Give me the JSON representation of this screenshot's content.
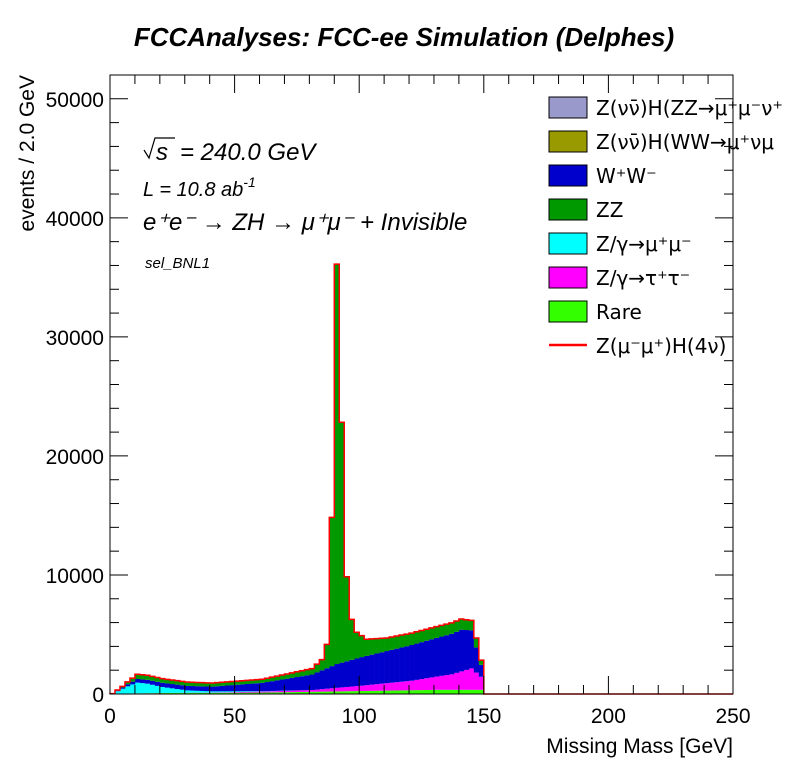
{
  "chart_data": {
    "type": "stacked-histogram",
    "title": "FCCAnalyses: FCC-ee Simulation (Delphes)",
    "xlabel": "Missing Mass [GeV]",
    "ylabel": "events / 2.0 GeV",
    "xlim": [
      0,
      250
    ],
    "ylim": [
      0,
      52000
    ],
    "bin_width": 2,
    "x_ticks": [
      0,
      50,
      100,
      150,
      200,
      250
    ],
    "y_ticks": [
      0,
      10000,
      20000,
      30000,
      40000,
      50000
    ],
    "x_tick_labels": [
      "0",
      "50",
      "100",
      "150",
      "200",
      "250"
    ],
    "y_tick_labels": [
      "0",
      "10000",
      "20000",
      "30000",
      "40000",
      "50000"
    ],
    "annotations": {
      "sqrt_s": "= 240.0 GeV",
      "lumi": "L = 10.8 ab",
      "lumi_exp": "-1",
      "process": "e⁺e⁻ → ZH → μ⁺μ⁻ + Invisible",
      "selection": "sel_BNL1"
    },
    "legend_position": "top-right",
    "legend": [
      {
        "label": "Z(νν̄)H(ZZ→μ⁺μ⁻ν⁺",
        "color": "#9999cc",
        "style": "fill"
      },
      {
        "label": "Z(νν̄)H(WW→μ⁺νμ",
        "color": "#999900",
        "style": "fill"
      },
      {
        "label": "W⁺W⁻",
        "color": "#0000cc",
        "style": "fill"
      },
      {
        "label": "ZZ",
        "color": "#009900",
        "style": "fill"
      },
      {
        "label": "Z/γ→μ⁺μ⁻",
        "color": "#00ffff",
        "style": "fill"
      },
      {
        "label": "Z/γ→τ⁺τ⁻",
        "color": "#ff00ff",
        "style": "fill"
      },
      {
        "label": "Rare",
        "color": "#33ff00",
        "style": "fill"
      },
      {
        "label": "Z(μ⁻μ⁺)H(4ν)",
        "color": "#ff0000",
        "style": "line"
      }
    ],
    "stack_order": [
      "Rare",
      "Z/γ→τ⁺τ⁻",
      "Z/γ→μ⁺μ⁻",
      "W⁺W⁻",
      "ZZ"
    ],
    "approx_bin_values": {
      "Rare": [
        [
          0,
          30
        ],
        [
          20,
          80
        ],
        [
          60,
          120
        ],
        [
          100,
          250
        ],
        [
          130,
          350
        ],
        [
          148,
          350
        ],
        [
          150,
          0
        ],
        [
          250,
          0
        ]
      ],
      "Z/γ→τ⁺τ⁻": [
        [
          0,
          0
        ],
        [
          40,
          20
        ],
        [
          80,
          150
        ],
        [
          100,
          450
        ],
        [
          120,
          800
        ],
        [
          136,
          1300
        ],
        [
          144,
          1800
        ],
        [
          148,
          1100
        ],
        [
          150,
          0
        ],
        [
          250,
          0
        ]
      ],
      "Z/γ→μ⁺μ⁻": [
        [
          0,
          0
        ],
        [
          2,
          200
        ],
        [
          6,
          600
        ],
        [
          10,
          900
        ],
        [
          14,
          800
        ],
        [
          20,
          500
        ],
        [
          30,
          200
        ],
        [
          40,
          100
        ],
        [
          60,
          30
        ],
        [
          80,
          0
        ],
        [
          250,
          0
        ]
      ],
      "W⁺W⁻": [
        [
          0,
          0
        ],
        [
          4,
          100
        ],
        [
          10,
          300
        ],
        [
          20,
          350
        ],
        [
          40,
          400
        ],
        [
          60,
          700
        ],
        [
          80,
          1300
        ],
        [
          90,
          2000
        ],
        [
          100,
          2400
        ],
        [
          120,
          3000
        ],
        [
          140,
          3500
        ],
        [
          144,
          3200
        ],
        [
          148,
          1000
        ],
        [
          150,
          0
        ],
        [
          250,
          0
        ]
      ],
      "ZZ": [
        [
          0,
          0
        ],
        [
          4,
          100
        ],
        [
          10,
          400
        ],
        [
          20,
          350
        ],
        [
          40,
          300
        ],
        [
          60,
          300
        ],
        [
          80,
          500
        ],
        [
          84,
          900
        ],
        [
          86,
          2000
        ],
        [
          88,
          12500
        ],
        [
          90,
          33600
        ],
        [
          92,
          20200
        ],
        [
          94,
          7100
        ],
        [
          96,
          3400
        ],
        [
          98,
          2200
        ],
        [
          102,
          1400
        ],
        [
          110,
          1100
        ],
        [
          120,
          1000
        ],
        [
          140,
          900
        ],
        [
          146,
          800
        ],
        [
          150,
          0
        ],
        [
          250,
          0
        ]
      ],
      "Z(μ⁻μ⁺)H(4ν)": [
        [
          0,
          0
        ],
        [
          250,
          0
        ]
      ]
    },
    "total_peak": {
      "x": 91,
      "y": 36700
    }
  }
}
